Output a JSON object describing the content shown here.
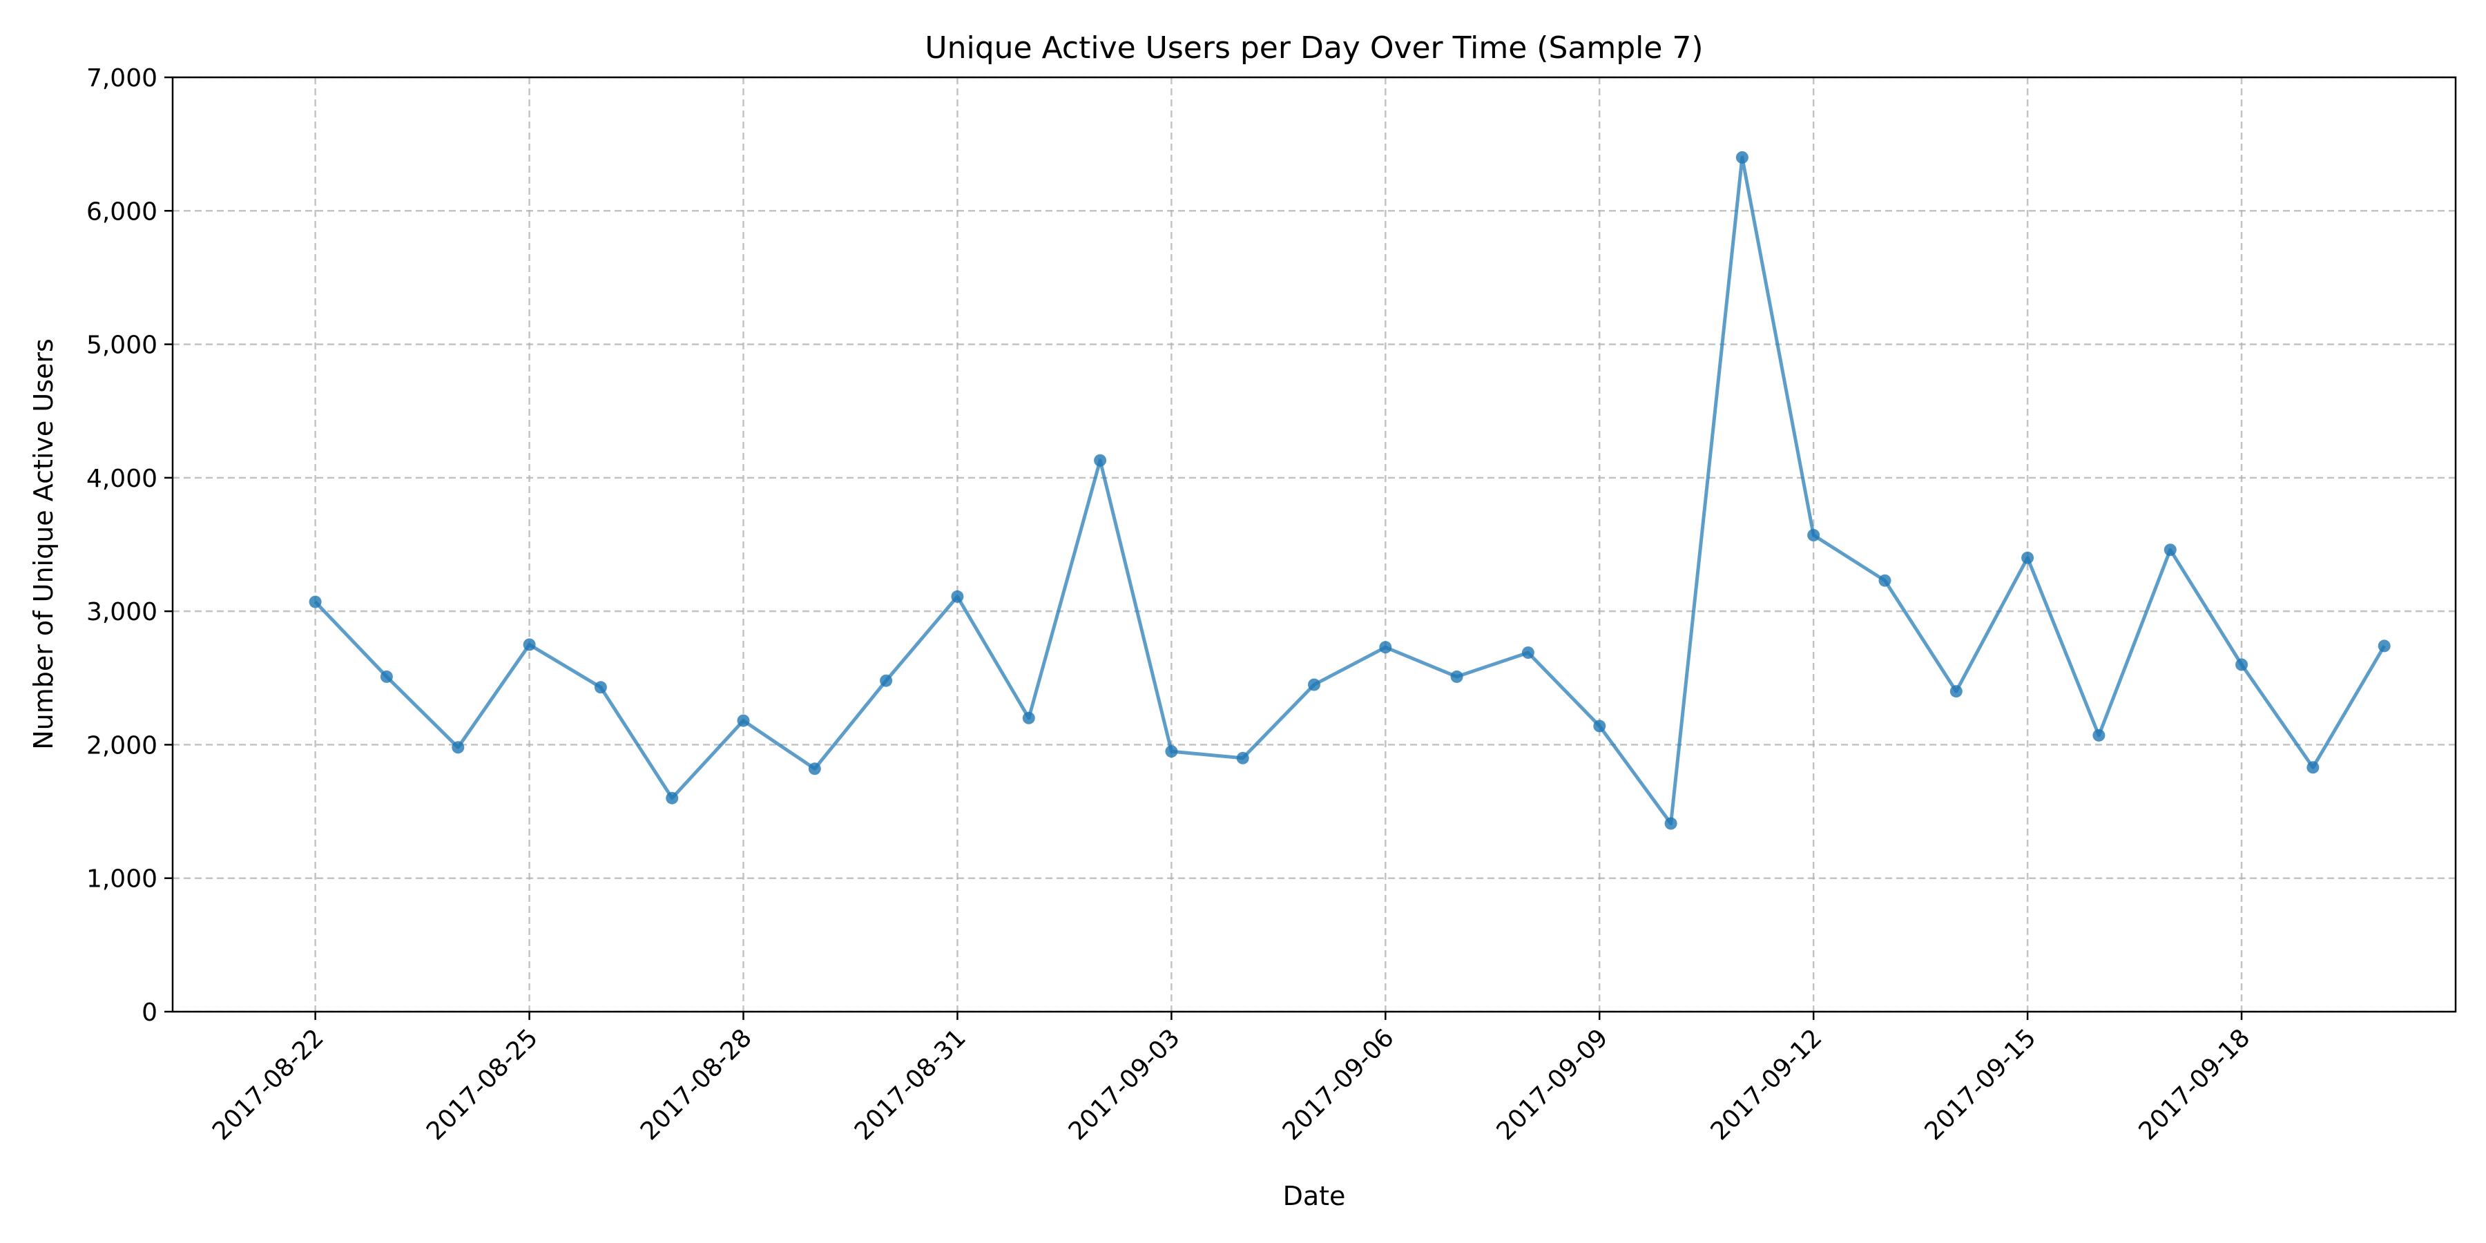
{
  "chart_data": {
    "type": "line",
    "title": "Unique Active Users per Day Over Time (Sample 7)",
    "xlabel": "Date",
    "ylabel": "Number of Unique Active Users",
    "ylim": [
      0,
      7000
    ],
    "y_ticks": [
      "0",
      "1,000",
      "2,000",
      "3,000",
      "4,000",
      "5,000",
      "6,000",
      "7,000"
    ],
    "x_ticks": [
      "2017-08-22",
      "2017-08-25",
      "2017-08-28",
      "2017-08-31",
      "2017-09-03",
      "2017-09-06",
      "2017-09-09",
      "2017-09-12",
      "2017-09-15",
      "2017-09-18"
    ],
    "x_range": [
      "2017-08-20",
      "2017-09-21"
    ],
    "grid": true,
    "line_color": "#1f77b4",
    "series": [
      {
        "x": [
          "2017-08-22",
          "2017-08-23",
          "2017-08-24",
          "2017-08-25",
          "2017-08-26",
          "2017-08-27",
          "2017-08-28",
          "2017-08-29",
          "2017-08-30",
          "2017-08-31",
          "2017-09-01",
          "2017-09-02",
          "2017-09-03",
          "2017-09-04",
          "2017-09-05",
          "2017-09-06",
          "2017-09-07",
          "2017-09-08",
          "2017-09-09",
          "2017-09-10",
          "2017-09-11",
          "2017-09-12",
          "2017-09-13",
          "2017-09-14",
          "2017-09-15",
          "2017-09-16",
          "2017-09-17",
          "2017-09-18",
          "2017-09-19",
          "2017-09-20"
        ],
        "values": [
          3070,
          2510,
          1980,
          2750,
          2430,
          1600,
          2180,
          1820,
          2480,
          3110,
          2200,
          4130,
          1950,
          1900,
          2450,
          2730,
          2510,
          2690,
          2140,
          1410,
          6400,
          3570,
          3230,
          2400,
          3400,
          2070,
          3460,
          2600,
          1830,
          2740
        ]
      }
    ]
  }
}
